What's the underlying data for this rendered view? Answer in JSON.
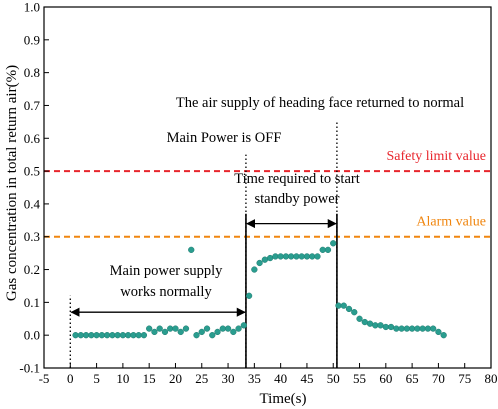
{
  "chart_data": {
    "type": "scatter",
    "xlabel": "Time(s)",
    "ylabel": "Gas concentration in total return air(%)",
    "xlim": [
      -5,
      80
    ],
    "ylim": [
      -0.1,
      1.0
    ],
    "x_ticks": [
      -5,
      0,
      5,
      10,
      15,
      20,
      25,
      30,
      35,
      40,
      45,
      50,
      55,
      60,
      65,
      70,
      75,
      80
    ],
    "y_ticks": [
      -0.1,
      0.0,
      0.1,
      0.2,
      0.3,
      0.4,
      0.5,
      0.6,
      0.7,
      0.8,
      0.9,
      1.0
    ],
    "grid": false,
    "point_color": "#2a9d8f",
    "series": [
      {
        "x": [
          1,
          2,
          3,
          4,
          5,
          6,
          7,
          8,
          9,
          10,
          11,
          12,
          13,
          14,
          15,
          16,
          17,
          18,
          19,
          20,
          21,
          22,
          23,
          24,
          25,
          26,
          27,
          28,
          29,
          30,
          31,
          32,
          33,
          34,
          35,
          36,
          37,
          38,
          39,
          40,
          41,
          42,
          43,
          44,
          45,
          46,
          47,
          48,
          49,
          50,
          51,
          52,
          53,
          54,
          55,
          56,
          57,
          58,
          59,
          60,
          61,
          62,
          63,
          64,
          65,
          66,
          67,
          68,
          69,
          70,
          71
        ],
        "y": [
          0.0,
          0.0,
          0.0,
          0.0,
          0.0,
          0.0,
          0.0,
          0.0,
          0.0,
          0.0,
          0.0,
          0.0,
          0.0,
          0.0,
          0.02,
          0.01,
          0.02,
          0.01,
          0.02,
          0.02,
          0.01,
          0.02,
          0.26,
          0.0,
          0.01,
          0.02,
          0.0,
          0.01,
          0.02,
          0.02,
          0.01,
          0.02,
          0.03,
          0.12,
          0.2,
          0.22,
          0.23,
          0.235,
          0.24,
          0.24,
          0.24,
          0.24,
          0.24,
          0.24,
          0.24,
          0.24,
          0.24,
          0.26,
          0.26,
          0.28,
          0.09,
          0.09,
          0.08,
          0.07,
          0.05,
          0.04,
          0.035,
          0.03,
          0.03,
          0.025,
          0.025,
          0.02,
          0.02,
          0.02,
          0.02,
          0.02,
          0.02,
          0.02,
          0.02,
          0.01,
          0.0
        ]
      }
    ],
    "reference_lines": [
      {
        "y": 0.5,
        "color": "#e8262d",
        "label": "Safety limit value"
      },
      {
        "y": 0.3,
        "color": "#f0860f",
        "label": "Alarm value"
      }
    ],
    "event_lines": [
      {
        "x": 0,
        "from": -0.1,
        "to": 0.12,
        "style": "dotted"
      },
      {
        "x": 33.4,
        "from": -0.1,
        "to": 0.55,
        "style": "dotted"
      },
      {
        "x": 50.7,
        "from": -0.1,
        "to": 0.65,
        "style": "dotted"
      }
    ],
    "annotations": [
      {
        "text": "The air supply of heading face returned to normal"
      },
      {
        "text": "Main Power is OFF"
      },
      {
        "text": "Time required to start"
      },
      {
        "text": "standby power"
      },
      {
        "text": "Main power supply"
      },
      {
        "text": "works normally"
      }
    ],
    "spans": [
      {
        "x0": 0,
        "x1": 33.4,
        "y": 0.07
      },
      {
        "x0": 33.4,
        "x1": 50.7,
        "y": 0.34
      }
    ]
  }
}
